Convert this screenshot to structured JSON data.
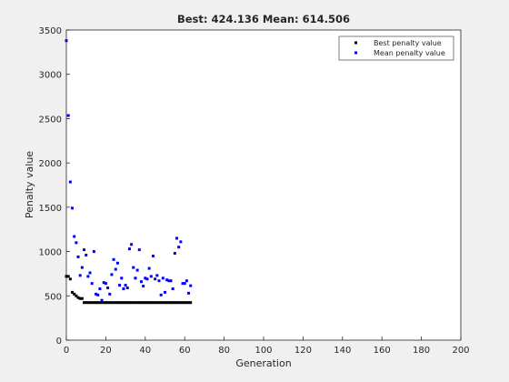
{
  "chart_data": {
    "type": "scatter",
    "title": "Best: 424.136 Mean: 614.506",
    "x_label": "Generation",
    "y_label": "Penalty value",
    "x": [
      0,
      1,
      2,
      3,
      4,
      5,
      6,
      7,
      8,
      9,
      10,
      11,
      12,
      13,
      14,
      15,
      16,
      17,
      18,
      19,
      20,
      21,
      22,
      23,
      24,
      25,
      26,
      27,
      28,
      29,
      30,
      31,
      32,
      33,
      34,
      35,
      36,
      37,
      38,
      39,
      40,
      41,
      42,
      43,
      44,
      45,
      46,
      47,
      48,
      49,
      50,
      51,
      52,
      53,
      54,
      55,
      56,
      57,
      58,
      59,
      60,
      61,
      62,
      63
    ],
    "series": [
      {
        "name": "Best penalty value",
        "color": "#000000",
        "values": [
          720,
          720,
          690,
          540,
          520,
          500,
          480,
          470,
          470,
          424.136,
          424.136,
          424.136,
          424.136,
          424.136,
          424.136,
          424.136,
          424.136,
          424.136,
          424.136,
          424.136,
          424.136,
          424.136,
          424.136,
          424.136,
          424.136,
          424.136,
          424.136,
          424.136,
          424.136,
          424.136,
          424.136,
          424.136,
          424.136,
          424.136,
          424.136,
          424.136,
          424.136,
          424.136,
          424.136,
          424.136,
          424.136,
          424.136,
          424.136,
          424.136,
          424.136,
          424.136,
          424.136,
          424.136,
          424.136,
          424.136,
          424.136,
          424.136,
          424.136,
          424.136,
          424.136,
          424.136,
          424.136,
          424.136,
          424.136,
          424.136,
          424.136,
          424.136,
          424.136,
          424.136
        ]
      },
      {
        "name": "Mean penalty value",
        "color": "#0000ff",
        "values": [
          3380,
          2535,
          1785,
          1490,
          1170,
          1100,
          940,
          730,
          820,
          1020,
          960,
          720,
          760,
          640,
          1000,
          520,
          510,
          580,
          450,
          650,
          640,
          590,
          520,
          740,
          910,
          800,
          870,
          620,
          700,
          580,
          620,
          590,
          1030,
          1080,
          820,
          700,
          790,
          1020,
          660,
          610,
          700,
          690,
          810,
          720,
          950,
          690,
          730,
          670,
          510,
          700,
          540,
          680,
          670,
          670,
          580,
          980,
          1150,
          1050,
          1110,
          640,
          640,
          670,
          530,
          614.506
        ]
      }
    ],
    "xlim": [
      0,
      200
    ],
    "xticks": [
      0,
      20,
      40,
      60,
      80,
      100,
      120,
      140,
      160,
      180,
      200
    ],
    "ylim": [
      0,
      3500
    ],
    "yticks": [
      0,
      500,
      1000,
      1500,
      2000,
      2500,
      3000,
      3500
    ],
    "legend": "northeast"
  }
}
